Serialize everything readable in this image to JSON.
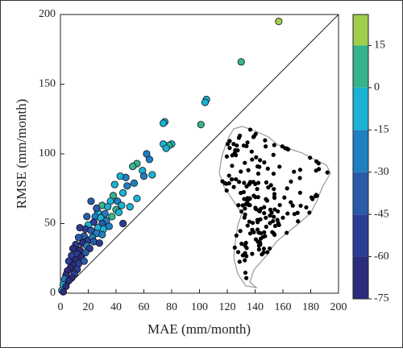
{
  "chart_data": {
    "type": "scatter",
    "xlabel": "MAE (mm/month)",
    "ylabel": "RMSE (mm/month)",
    "xlim": [
      0,
      200
    ],
    "xticks": [
      0,
      20,
      40,
      60,
      80,
      100,
      120,
      140,
      160,
      180,
      200
    ],
    "ylim": [
      0,
      200
    ],
    "yticks": [
      0,
      50,
      100,
      150,
      200
    ],
    "x": [
      157,
      130,
      105,
      104,
      101,
      75,
      74,
      80,
      78,
      74,
      76,
      62,
      64,
      55,
      52,
      59,
      66,
      60,
      47,
      43,
      53,
      48,
      45,
      38,
      36,
      41,
      22,
      30,
      44,
      34,
      27,
      32,
      40,
      37,
      42,
      25,
      29,
      33,
      30,
      24,
      20,
      27,
      31,
      18,
      14,
      22,
      26,
      30,
      17,
      20,
      23,
      13,
      16,
      11,
      19,
      21,
      9,
      14,
      18,
      12,
      8,
      15,
      11,
      6,
      17,
      13,
      9,
      7,
      12,
      5,
      10,
      4,
      8,
      3,
      6,
      2,
      4,
      1,
      2,
      24,
      28,
      35,
      19,
      26,
      39,
      45,
      50,
      55
    ],
    "y": [
      195,
      166,
      139,
      137,
      121,
      123,
      122,
      107,
      106,
      107,
      104,
      100,
      96,
      93,
      91,
      88,
      85,
      84,
      83,
      84,
      79,
      77,
      72,
      70,
      66,
      66,
      66,
      63,
      63,
      62,
      58,
      57,
      60,
      55,
      58,
      55,
      54,
      52,
      50,
      51,
      49,
      47,
      46,
      46,
      47,
      45,
      43,
      42,
      41,
      38,
      40,
      40,
      36,
      35,
      34,
      32,
      32,
      31,
      29,
      28,
      27,
      26,
      24,
      23,
      23,
      21,
      20,
      18,
      17,
      16,
      14,
      13,
      11,
      10,
      9,
      6,
      5,
      2,
      1,
      37,
      36,
      48,
      55,
      61,
      78,
      50,
      62,
      68
    ],
    "c": [
      20,
      5,
      -10,
      -10,
      5,
      -10,
      -12,
      -5,
      3,
      -12,
      -10,
      -20,
      -20,
      5,
      3,
      -5,
      -10,
      -25,
      -20,
      -10,
      -30,
      -18,
      -10,
      5,
      -5,
      -25,
      -40,
      5,
      -10,
      -12,
      -8,
      -20,
      0,
      5,
      -15,
      -30,
      -10,
      -20,
      -40,
      -50,
      -8,
      -15,
      -5,
      -50,
      -55,
      -40,
      -20,
      -30,
      -35,
      -60,
      -25,
      -45,
      -65,
      -60,
      -20,
      -50,
      -65,
      -70,
      -40,
      -55,
      -60,
      -65,
      -70,
      -55,
      -35,
      -60,
      -72,
      -65,
      -60,
      -72,
      -55,
      -70,
      -68,
      -20,
      -72,
      -15,
      -70,
      -10,
      -72,
      -45,
      -55,
      -20,
      -45,
      -35,
      -15,
      -50,
      -15,
      -5
    ],
    "colorbar": {
      "lim": [
        -75,
        26
      ],
      "ticks": [
        -75,
        -60,
        -45,
        -30,
        -15,
        0,
        15
      ],
      "boundaries": [
        -75,
        -60,
        -45,
        -30,
        -15,
        0,
        15,
        26
      ],
      "colors": [
        "#2b2d7e",
        "#2c3d96",
        "#2a5aa9",
        "#1f7fc2",
        "#1ab3d4",
        "#35b38d",
        "#a0cf4c"
      ]
    }
  }
}
